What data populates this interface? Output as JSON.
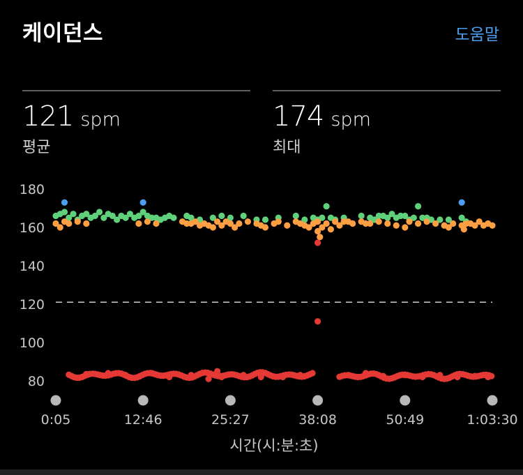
{
  "header": {
    "title": "케이던스",
    "help_label": "도움말"
  },
  "stats": [
    {
      "value": "121",
      "unit": "spm",
      "label": "평균"
    },
    {
      "value": "174",
      "unit": "spm",
      "label": "최대"
    }
  ],
  "colors": {
    "green": "#5fd17a",
    "orange": "#ff9f43",
    "red": "#e53935",
    "blue": "#4c9ff0",
    "axis_text": "#c8c8c8",
    "knob": "#b8b8b8"
  },
  "chart_data": {
    "type": "scatter",
    "xlabel": "시간(시:분:초)",
    "ylabel": "",
    "ylim": [
      75,
      185
    ],
    "x_ticks": [
      "0:05",
      "12:46",
      "25:27",
      "38:08",
      "50:49",
      "1:03:30"
    ],
    "y_ticks": [
      80,
      100,
      120,
      140,
      160,
      180
    ],
    "average_line": 121,
    "grid": false,
    "series": [
      {
        "color_key": "blue",
        "points": [
          [
            0.02,
            173
          ],
          [
            0.2,
            173
          ],
          [
            0.93,
            173
          ]
        ]
      },
      {
        "color_key": "green",
        "points": [
          [
            0.0,
            166
          ],
          [
            0.01,
            167
          ],
          [
            0.02,
            168
          ],
          [
            0.03,
            165
          ],
          [
            0.04,
            167
          ],
          [
            0.05,
            164
          ],
          [
            0.06,
            166
          ],
          [
            0.07,
            167
          ],
          [
            0.08,
            165
          ],
          [
            0.09,
            166
          ],
          [
            0.1,
            168
          ],
          [
            0.11,
            165
          ],
          [
            0.12,
            167
          ],
          [
            0.13,
            166
          ],
          [
            0.14,
            164
          ],
          [
            0.15,
            166
          ],
          [
            0.16,
            165
          ],
          [
            0.17,
            167
          ],
          [
            0.18,
            165
          ],
          [
            0.19,
            166
          ],
          [
            0.2,
            168
          ],
          [
            0.21,
            166
          ],
          [
            0.22,
            165
          ],
          [
            0.23,
            165
          ],
          [
            0.24,
            164
          ],
          [
            0.25,
            165
          ],
          [
            0.26,
            166
          ],
          [
            0.27,
            165
          ],
          [
            0.3,
            166
          ],
          [
            0.31,
            165
          ],
          [
            0.33,
            164
          ],
          [
            0.36,
            165
          ],
          [
            0.38,
            166
          ],
          [
            0.4,
            165
          ],
          [
            0.43,
            166
          ],
          [
            0.46,
            164
          ],
          [
            0.48,
            164
          ],
          [
            0.51,
            165
          ],
          [
            0.55,
            166
          ],
          [
            0.57,
            164
          ],
          [
            0.59,
            165
          ],
          [
            0.6,
            164
          ],
          [
            0.62,
            171
          ],
          [
            0.61,
            165
          ],
          [
            0.63,
            165
          ],
          [
            0.64,
            164
          ],
          [
            0.66,
            165
          ],
          [
            0.7,
            166
          ],
          [
            0.72,
            165
          ],
          [
            0.73,
            164
          ],
          [
            0.74,
            166
          ],
          [
            0.75,
            166
          ],
          [
            0.76,
            165
          ],
          [
            0.77,
            167
          ],
          [
            0.78,
            165
          ],
          [
            0.79,
            166
          ],
          [
            0.8,
            166
          ],
          [
            0.81,
            164
          ],
          [
            0.82,
            165
          ],
          [
            0.83,
            171
          ],
          [
            0.84,
            165
          ],
          [
            0.85,
            165
          ],
          [
            0.86,
            164
          ],
          [
            0.88,
            164
          ],
          [
            0.9,
            164
          ],
          [
            0.93,
            165
          ],
          [
            0.94,
            163
          ]
        ]
      },
      {
        "color_key": "orange",
        "points": [
          [
            0.0,
            162
          ],
          [
            0.01,
            160
          ],
          [
            0.02,
            163
          ],
          [
            0.03,
            162
          ],
          [
            0.05,
            163
          ],
          [
            0.07,
            162
          ],
          [
            0.19,
            162
          ],
          [
            0.21,
            163
          ],
          [
            0.23,
            162
          ],
          [
            0.29,
            163
          ],
          [
            0.3,
            162
          ],
          [
            0.31,
            162
          ],
          [
            0.32,
            163
          ],
          [
            0.33,
            161
          ],
          [
            0.34,
            162
          ],
          [
            0.35,
            161
          ],
          [
            0.36,
            160
          ],
          [
            0.37,
            163
          ],
          [
            0.38,
            161
          ],
          [
            0.39,
            163
          ],
          [
            0.4,
            162
          ],
          [
            0.41,
            160
          ],
          [
            0.42,
            162
          ],
          [
            0.44,
            163
          ],
          [
            0.46,
            162
          ],
          [
            0.47,
            161
          ],
          [
            0.48,
            160
          ],
          [
            0.5,
            162
          ],
          [
            0.51,
            163
          ],
          [
            0.53,
            161
          ],
          [
            0.55,
            163
          ],
          [
            0.56,
            162
          ],
          [
            0.57,
            161
          ],
          [
            0.58,
            160
          ],
          [
            0.59,
            162
          ],
          [
            0.6,
            163
          ],
          [
            0.61,
            160
          ],
          [
            0.62,
            162
          ],
          [
            0.63,
            159
          ],
          [
            0.64,
            163
          ],
          [
            0.65,
            161
          ],
          [
            0.66,
            163
          ],
          [
            0.67,
            163
          ],
          [
            0.68,
            162
          ],
          [
            0.7,
            163
          ],
          [
            0.71,
            162
          ],
          [
            0.72,
            162
          ],
          [
            0.74,
            163
          ],
          [
            0.76,
            162
          ],
          [
            0.78,
            161
          ],
          [
            0.8,
            160
          ],
          [
            0.81,
            163
          ],
          [
            0.83,
            162
          ],
          [
            0.85,
            163
          ],
          [
            0.87,
            162
          ],
          [
            0.89,
            161
          ],
          [
            0.9,
            160
          ],
          [
            0.91,
            162
          ],
          [
            0.93,
            161
          ],
          [
            0.935,
            159
          ],
          [
            0.94,
            162
          ],
          [
            0.95,
            162
          ],
          [
            0.96,
            161
          ],
          [
            0.97,
            163
          ],
          [
            0.98,
            161
          ],
          [
            0.99,
            162
          ],
          [
            1.0,
            161
          ],
          [
            0.605,
            155
          ],
          [
            0.6,
            158
          ]
        ]
      },
      {
        "color_key": "red",
        "points": [
          [
            0.6,
            152
          ],
          [
            0.6,
            111
          ]
        ],
        "bands": [
          [
            0.03,
            0.59,
            83
          ],
          [
            0.65,
            1.0,
            82.5
          ]
        ],
        "extra": [
          [
            0.37,
            85
          ],
          [
            0.07,
            83.5
          ],
          [
            0.12,
            84
          ],
          [
            0.16,
            83
          ],
          [
            0.22,
            84
          ],
          [
            0.26,
            82
          ],
          [
            0.31,
            83
          ],
          [
            0.35,
            81
          ],
          [
            0.38,
            82
          ],
          [
            0.43,
            83
          ],
          [
            0.47,
            82
          ],
          [
            0.52,
            82
          ],
          [
            0.56,
            83
          ],
          [
            0.67,
            83
          ],
          [
            0.71,
            84
          ],
          [
            0.75,
            82.5
          ],
          [
            0.8,
            83
          ],
          [
            0.84,
            82
          ],
          [
            0.88,
            83
          ],
          [
            0.92,
            82
          ],
          [
            0.96,
            82.5
          ],
          [
            0.99,
            82
          ]
        ]
      }
    ]
  }
}
